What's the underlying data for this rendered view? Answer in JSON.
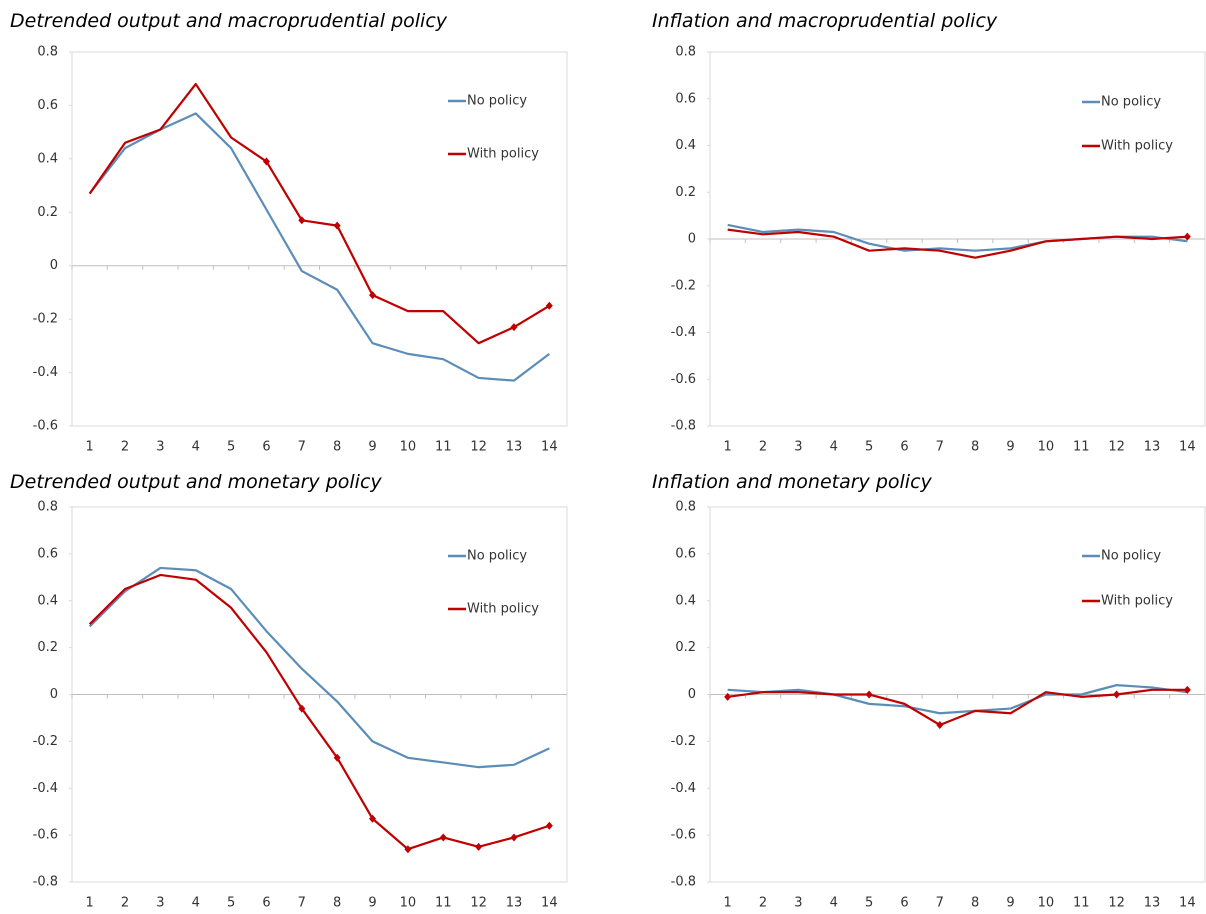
{
  "chart_data": [
    {
      "type": "line",
      "title": "Detrended output and macroprudential policy",
      "categories": [
        "1",
        "2",
        "3",
        "4",
        "5",
        "6",
        "7",
        "8",
        "9",
        "10",
        "11",
        "12",
        "13",
        "14"
      ],
      "series": [
        {
          "name": "No policy",
          "color": "#5b8db8",
          "values": [
            0.27,
            0.44,
            0.51,
            0.57,
            0.44,
            0.21,
            -0.02,
            -0.09,
            -0.29,
            -0.33,
            -0.35,
            -0.42,
            -0.43,
            -0.33
          ]
        },
        {
          "name": "With policy",
          "color": "#c00000",
          "values": [
            0.27,
            0.46,
            0.51,
            0.68,
            0.48,
            0.39,
            0.17,
            0.15,
            -0.11,
            -0.17,
            -0.17,
            -0.29,
            -0.23,
            -0.15
          ],
          "marker_points": [
            5,
            6,
            7,
            8,
            12,
            13
          ]
        }
      ],
      "ylim": [
        -0.6,
        0.8
      ],
      "yticks": [
        -0.6,
        -0.4,
        -0.2,
        0,
        0.2,
        0.4,
        0.6,
        0.8
      ]
    },
    {
      "type": "line",
      "title": "Inflation and macroprudential policy",
      "categories": [
        "1",
        "2",
        "3",
        "4",
        "5",
        "6",
        "7",
        "8",
        "9",
        "10",
        "11",
        "12",
        "13",
        "14"
      ],
      "series": [
        {
          "name": "No policy",
          "color": "#5b8db8",
          "values": [
            0.06,
            0.03,
            0.04,
            0.03,
            -0.02,
            -0.05,
            -0.04,
            -0.05,
            -0.04,
            -0.01,
            0.0,
            0.01,
            0.01,
            -0.01
          ]
        },
        {
          "name": "With policy",
          "color": "#c00000",
          "values": [
            0.04,
            0.02,
            0.03,
            0.01,
            -0.05,
            -0.04,
            -0.05,
            -0.08,
            -0.05,
            -0.01,
            0.0,
            0.01,
            0.0,
            0.01
          ],
          "marker_points": [
            13
          ]
        }
      ],
      "ylim": [
        -0.8,
        0.8
      ],
      "yticks": [
        -0.8,
        -0.6,
        -0.4,
        -0.2,
        0,
        0.2,
        0.4,
        0.6,
        0.8
      ]
    },
    {
      "type": "line",
      "title": "Detrended output and monetary policy",
      "categories": [
        "1",
        "2",
        "3",
        "4",
        "5",
        "6",
        "7",
        "8",
        "9",
        "10",
        "11",
        "12",
        "13",
        "14"
      ],
      "series": [
        {
          "name": "No policy",
          "color": "#5b8db8",
          "values": [
            0.29,
            0.44,
            0.54,
            0.53,
            0.45,
            0.27,
            0.11,
            -0.03,
            -0.2,
            -0.27,
            -0.29,
            -0.31,
            -0.3,
            -0.23
          ]
        },
        {
          "name": "With policy",
          "color": "#c00000",
          "values": [
            0.3,
            0.45,
            0.51,
            0.49,
            0.37,
            0.18,
            -0.06,
            -0.27,
            -0.53,
            -0.66,
            -0.61,
            -0.65,
            -0.61,
            -0.56
          ],
          "marker_points": [
            6,
            7,
            8,
            9,
            10,
            11,
            12,
            13
          ]
        }
      ],
      "ylim": [
        -0.8,
        0.8
      ],
      "yticks": [
        -0.8,
        -0.6,
        -0.4,
        -0.2,
        0,
        0.2,
        0.4,
        0.6,
        0.8
      ]
    },
    {
      "type": "line",
      "title": "Inflation and monetary policy",
      "categories": [
        "1",
        "2",
        "3",
        "4",
        "5",
        "6",
        "7",
        "8",
        "9",
        "10",
        "11",
        "12",
        "13",
        "14"
      ],
      "series": [
        {
          "name": "No policy",
          "color": "#5b8db8",
          "values": [
            0.02,
            0.01,
            0.02,
            0.0,
            -0.04,
            -0.05,
            -0.08,
            -0.07,
            -0.06,
            0.0,
            0.0,
            0.04,
            0.03,
            0.01
          ]
        },
        {
          "name": "With policy",
          "color": "#c00000",
          "values": [
            -0.01,
            0.01,
            0.01,
            0.0,
            0.0,
            -0.04,
            -0.13,
            -0.07,
            -0.08,
            0.01,
            -0.01,
            0.0,
            0.02,
            0.02
          ],
          "marker_points": [
            0,
            4,
            6,
            11,
            13
          ]
        }
      ],
      "ylim": [
        -0.8,
        0.8
      ],
      "yticks": [
        -0.8,
        -0.6,
        -0.4,
        -0.2,
        0,
        0.2,
        0.4,
        0.6,
        0.8
      ]
    }
  ]
}
